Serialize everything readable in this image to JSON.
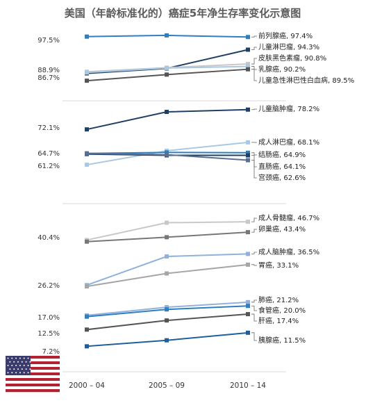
{
  "chart_data": {
    "type": "line",
    "title": "美国（年龄标准化的）癌症5年净生存率变化示意图",
    "x_categories": [
      "2000 – 04",
      "2005 – 09",
      "2010 – 14"
    ],
    "y_tick_labels": [
      "97.5%",
      "88.9%",
      "86.7%",
      "72.1%",
      "64.7%",
      "61.2%",
      "40.4%",
      "26.2%",
      "17.0%",
      "12.5%",
      "7.2%"
    ],
    "panels": [
      {
        "ylim": [
          84,
          100
        ],
        "series": [
          {
            "name": "前列腺癌",
            "end_label": "前列腺癌, 97.4%",
            "values": [
              97.5,
              97.8,
              97.4
            ],
            "color": "#2f7ec0"
          },
          {
            "name": "儿童淋巴瘤",
            "end_label": "儿童淋巴瘤, 94.3%",
            "values": [
              88.5,
              89.7,
              94.3
            ],
            "color": "#1f3f66"
          },
          {
            "name": "皮肤黑色素瘤",
            "end_label": "皮肤黑色素瘤, 90.8%",
            "values": [
              88.9,
              89.9,
              90.8
            ],
            "color": "#c8c8c8"
          },
          {
            "name": "乳腺癌",
            "end_label": "乳腺癌, 90.2%",
            "values": [
              88.7,
              89.8,
              90.2
            ],
            "color": "#a9c8e3"
          },
          {
            "name": "儿童急性淋巴性白血病",
            "end_label": "儿童急性淋巴性白血病, 89.5%",
            "values": [
              86.7,
              88.2,
              89.5
            ],
            "color": "#555555"
          }
        ]
      },
      {
        "ylim": [
          58,
          82
        ],
        "series": [
          {
            "name": "儿童脑肿瘤",
            "end_label": "儿童脑肿瘤, 78.2%",
            "values": [
              72.1,
              77.5,
              78.2
            ],
            "color": "#1f3f66"
          },
          {
            "name": "成人淋巴瘤",
            "end_label": "成人淋巴瘤, 68.1%",
            "values": [
              61.2,
              65.5,
              68.1
            ],
            "color": "#a9c8e3"
          },
          {
            "name": "结肠癌",
            "end_label": "结肠癌, 64.9%",
            "values": [
              64.7,
              65.0,
              64.9
            ],
            "color": "#2f7ec0"
          },
          {
            "name": "直肠癌",
            "end_label": "直肠癌, 64.1%",
            "values": [
              64.5,
              64.1,
              64.1
            ],
            "color": "#1f3f66"
          },
          {
            "name": "宫颈癌",
            "end_label": "宫颈癌, 62.6%",
            "values": [
              64.7,
              64.3,
              62.6
            ],
            "color": "#5b6f8f"
          }
        ]
      },
      {
        "ylim": [
          0,
          54
        ],
        "series": [
          {
            "name": "成人骨髓瘤",
            "end_label": "成人骨髓瘤, 46.7%",
            "values": [
              40.9,
              46.4,
              46.7
            ],
            "color": "#c8c8c8"
          },
          {
            "name": "卵巢癌",
            "end_label": "卵巢癌, 43.4%",
            "values": [
              40.4,
              41.8,
              43.4
            ],
            "color": "#777777"
          },
          {
            "name": "成人脑肿瘤",
            "end_label": "成人脑肿瘤, 36.5%",
            "values": [
              26.6,
              35.7,
              36.5
            ],
            "color": "#8fb1dc"
          },
          {
            "name": "胃癌",
            "end_label": "胃癌, 33.1%",
            "values": [
              26.2,
              30.3,
              33.1
            ],
            "color": "#a6a6a6"
          },
          {
            "name": "肺癌",
            "end_label": "肺癌, 21.2%",
            "values": [
              17.0,
              19.6,
              21.2
            ],
            "color": "#8fb1dc"
          },
          {
            "name": "食管癌",
            "end_label": "食管癌, 20.0%",
            "values": [
              16.6,
              18.9,
              20.0
            ],
            "color": "#2f7ec0"
          },
          {
            "name": "肝癌",
            "end_label": "肝癌, 17.4%",
            "values": [
              12.5,
              15.4,
              17.4
            ],
            "color": "#555555"
          },
          {
            "name": "胰腺癌",
            "end_label": "胰腺癌, 11.5%",
            "values": [
              7.2,
              9.1,
              11.5
            ],
            "color": "#1f5f99"
          }
        ]
      }
    ],
    "grid": false,
    "legend": "direct labels at line ends"
  },
  "flag": {
    "icon": "us-flag-icon",
    "stripe_red": "#b22234",
    "white": "#ffffff",
    "canton_blue": "#3c3b6e"
  }
}
